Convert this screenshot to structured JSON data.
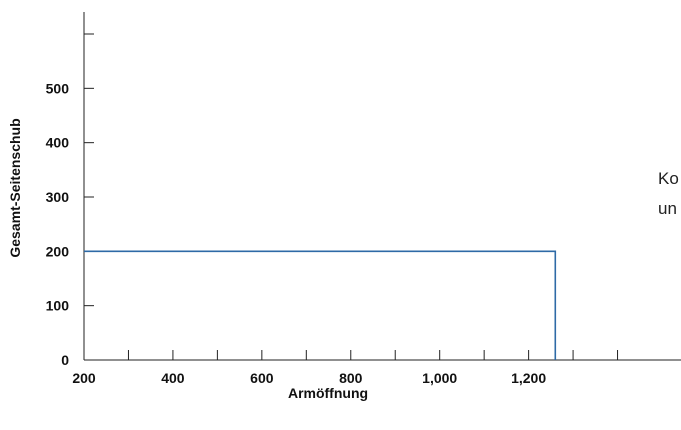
{
  "chart_data": {
    "type": "line",
    "title": "",
    "xlabel": "Armöffnung",
    "ylabel": "Gesamt-Seitenschub",
    "xlim": [
      200,
      1500
    ],
    "ylim": [
      0,
      600
    ],
    "x_ticks": [
      200,
      300,
      400,
      500,
      600,
      700,
      800,
      900,
      1000,
      1100,
      1200,
      1300,
      1400
    ],
    "x_tick_labels": [
      {
        "value": 200,
        "label": "200"
      },
      {
        "value": 400,
        "label": "400"
      },
      {
        "value": 600,
        "label": "600"
      },
      {
        "value": 800,
        "label": "800"
      },
      {
        "value": 1000,
        "label": "1,000"
      },
      {
        "value": 1200,
        "label": "1,200"
      }
    ],
    "y_ticks": [
      0,
      100,
      200,
      300,
      400,
      500,
      600
    ],
    "y_tick_labels": [
      {
        "value": 0,
        "label": "0"
      },
      {
        "value": 100,
        "label": "100"
      },
      {
        "value": 200,
        "label": "200"
      },
      {
        "value": 300,
        "label": "300"
      },
      {
        "value": 400,
        "label": "400"
      },
      {
        "value": 500,
        "label": "500"
      }
    ],
    "grid": false,
    "series": [
      {
        "color": "#2e6aa6",
        "points": [
          {
            "x": 200,
            "y": 200
          },
          {
            "x": 1260,
            "y": 200
          },
          {
            "x": 1260,
            "y": 0
          }
        ]
      }
    ],
    "annotations": [
      "Ko",
      "un"
    ]
  }
}
